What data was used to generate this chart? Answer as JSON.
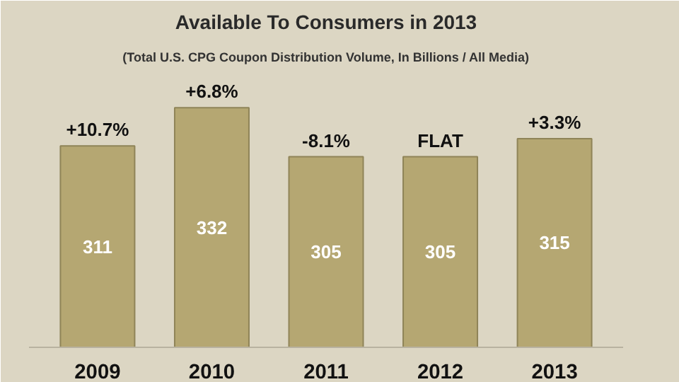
{
  "chart_data": {
    "type": "bar",
    "title": "Available To Consumers in 2013",
    "subtitle": "(Total U.S. CPG Coupon Distribution Volume, In Billions / All Media)",
    "categories": [
      "2009",
      "2010",
      "2011",
      "2012",
      "2013"
    ],
    "values": [
      311,
      332,
      305,
      305,
      315
    ],
    "color": "#b5a772",
    "ylim": [
      200,
      352
    ],
    "data_labels": true,
    "grid": false,
    "annotations": [
      {
        "text": "+10.7%",
        "x": "2009",
        "y": 311
      },
      {
        "text": "+6.8%",
        "x": "2010",
        "y": 332
      },
      {
        "text": "-8.1%",
        "x": "2011",
        "y": 305
      },
      {
        "text": "FLAT",
        "x": "2012",
        "y": 305
      },
      {
        "text": "+3.3%",
        "x": "2013",
        "y": 315
      }
    ]
  }
}
